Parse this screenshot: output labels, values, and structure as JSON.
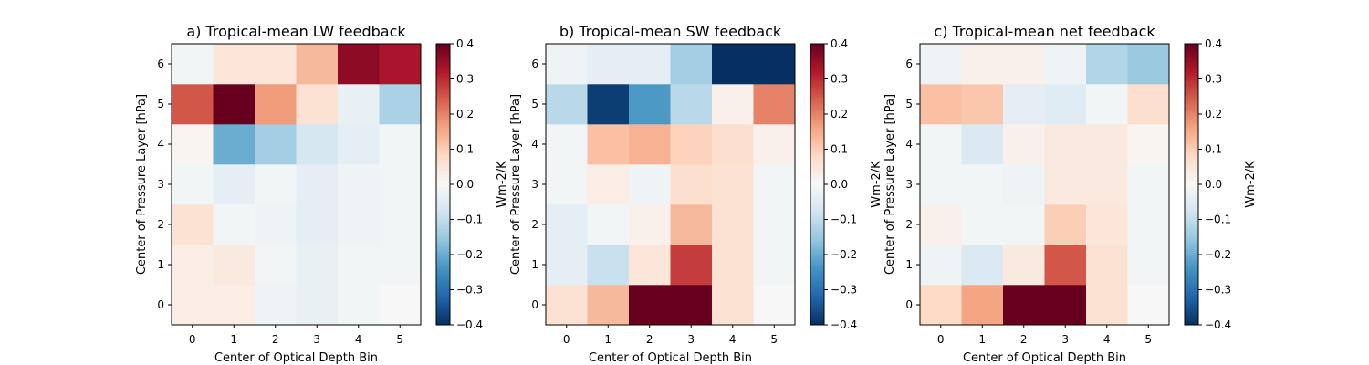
{
  "chart_data": [
    {
      "type": "heatmap",
      "title": "a) Tropical-mean LW feedback",
      "xlabel": "Center of Optical Depth Bin",
      "ylabel": "Center of Pressure Layer [hPa]",
      "x": [
        0,
        1,
        2,
        3,
        4,
        5
      ],
      "y": [
        0,
        1,
        2,
        3,
        4,
        5,
        6
      ],
      "values": [
        [
          0.03,
          0.03,
          -0.02,
          -0.03,
          -0.01,
          0.0
        ],
        [
          0.03,
          0.04,
          -0.01,
          -0.03,
          -0.01,
          -0.01
        ],
        [
          0.06,
          -0.01,
          -0.02,
          -0.04,
          -0.02,
          -0.01
        ],
        [
          -0.01,
          -0.04,
          -0.01,
          -0.04,
          -0.02,
          -0.01
        ],
        [
          0.01,
          -0.2,
          -0.14,
          -0.07,
          -0.04,
          -0.01
        ],
        [
          0.25,
          0.4,
          0.17,
          0.06,
          -0.03,
          -0.13
        ],
        [
          -0.01,
          0.05,
          0.05,
          0.13,
          0.36,
          0.33
        ]
      ],
      "colorbar": {
        "label": "Wm-2/K",
        "ticks": [
          "−0.4",
          "−0.3",
          "−0.2",
          "−0.1",
          "0.0",
          "0.1",
          "0.2",
          "0.3",
          "0.4"
        ],
        "vmin": -0.4,
        "vmax": 0.4
      },
      "colormap": "RdBu_r"
    },
    {
      "type": "heatmap",
      "title": "b) Tropical-mean SW feedback",
      "xlabel": "Center of Optical Depth Bin",
      "ylabel": "Center of Pressure Layer [hPa]",
      "x": [
        0,
        1,
        2,
        3,
        4,
        5
      ],
      "y": [
        0,
        1,
        2,
        3,
        4,
        5,
        6
      ],
      "values": [
        [
          0.06,
          0.13,
          0.45,
          0.45,
          0.06,
          0.0
        ],
        [
          -0.04,
          -0.09,
          0.05,
          0.28,
          0.06,
          -0.01
        ],
        [
          -0.04,
          -0.01,
          0.02,
          0.13,
          0.06,
          -0.01
        ],
        [
          -0.01,
          0.03,
          -0.02,
          0.07,
          0.06,
          -0.01
        ],
        [
          -0.01,
          0.12,
          0.14,
          0.09,
          0.07,
          0.02
        ],
        [
          -0.11,
          -0.38,
          -0.23,
          -0.11,
          0.02,
          0.2
        ],
        [
          -0.02,
          -0.04,
          -0.04,
          -0.14,
          -0.41,
          -0.41
        ]
      ],
      "colorbar": {
        "label": "Wm-2/K",
        "ticks": [
          "−0.4",
          "−0.3",
          "−0.2",
          "−0.1",
          "0.0",
          "0.1",
          "0.2",
          "0.3",
          "0.4"
        ],
        "vmin": -0.4,
        "vmax": 0.4
      },
      "colormap": "RdBu_r"
    },
    {
      "type": "heatmap",
      "title": "c) Tropical-mean net feedback",
      "xlabel": "Center of Optical Depth Bin",
      "ylabel": "Center of Pressure Layer [hPa]",
      "x": [
        0,
        1,
        2,
        3,
        4,
        5
      ],
      "y": [
        0,
        1,
        2,
        3,
        4,
        5,
        6
      ],
      "values": [
        [
          0.08,
          0.16,
          0.45,
          0.45,
          0.06,
          0.0
        ],
        [
          -0.02,
          -0.06,
          0.04,
          0.25,
          0.06,
          -0.01
        ],
        [
          0.02,
          -0.01,
          -0.01,
          0.1,
          0.05,
          -0.01
        ],
        [
          -0.01,
          -0.01,
          -0.02,
          0.04,
          0.04,
          -0.01
        ],
        [
          -0.01,
          -0.06,
          0.02,
          0.04,
          0.04,
          0.01
        ],
        [
          0.12,
          0.11,
          -0.04,
          -0.05,
          -0.01,
          0.07
        ],
        [
          -0.02,
          0.02,
          0.02,
          -0.02,
          -0.12,
          -0.15
        ]
      ],
      "colorbar": {
        "label": "Wm-2/K",
        "ticks": [
          "−0.4",
          "−0.3",
          "−0.2",
          "−0.1",
          "0.0",
          "0.1",
          "0.2",
          "0.3",
          "0.4"
        ],
        "vmin": -0.4,
        "vmax": 0.4
      },
      "colormap": "RdBu_r"
    }
  ]
}
